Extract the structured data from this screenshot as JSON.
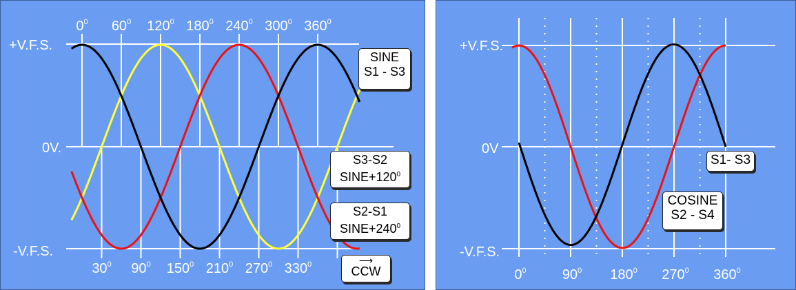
{
  "chart_data": [
    {
      "type": "line",
      "title": "",
      "y_tick_labels": [
        "+V.F.S.",
        "0V.",
        "-V.F.S."
      ],
      "top_x_ticks": [
        "0",
        "60",
        "120",
        "180",
        "240",
        "300",
        "360"
      ],
      "bottom_x_ticks": [
        "30",
        "90",
        "150",
        "210",
        "270",
        "330"
      ],
      "degree_mark": "0",
      "series": [
        {
          "name": "SINE S1 - S3",
          "color": "#000000",
          "phase_deg": 0
        },
        {
          "name": "S3-S2 SINE+120",
          "color": "#ffff33",
          "phase_deg": 120
        },
        {
          "name": "S2-S1 SINE+240",
          "color": "#ee1111",
          "phase_deg": 240
        }
      ],
      "labels": {
        "sine": [
          "SINE",
          "S1 - S3"
        ],
        "s3s2": [
          "S3-S2",
          "SINE+120"
        ],
        "s2s1": [
          "S2-S1",
          "SINE+240"
        ],
        "ccw": "CCW"
      },
      "grid": true
    },
    {
      "type": "line",
      "title": "",
      "y_tick_labels": [
        "+V.F.S.",
        "0V",
        "-V.F.S."
      ],
      "x_ticks": [
        "0",
        "90",
        "180",
        "270",
        "360"
      ],
      "degree_mark": "0",
      "series": [
        {
          "name": "S1- S3",
          "color": "#000000"
        },
        {
          "name": "COSINE S2 - S4",
          "color": "#ee1111"
        }
      ],
      "labels": {
        "s1s3": "S1- S3",
        "cosine": [
          "COSINE",
          "S2 - S4"
        ]
      },
      "grid": true
    }
  ]
}
